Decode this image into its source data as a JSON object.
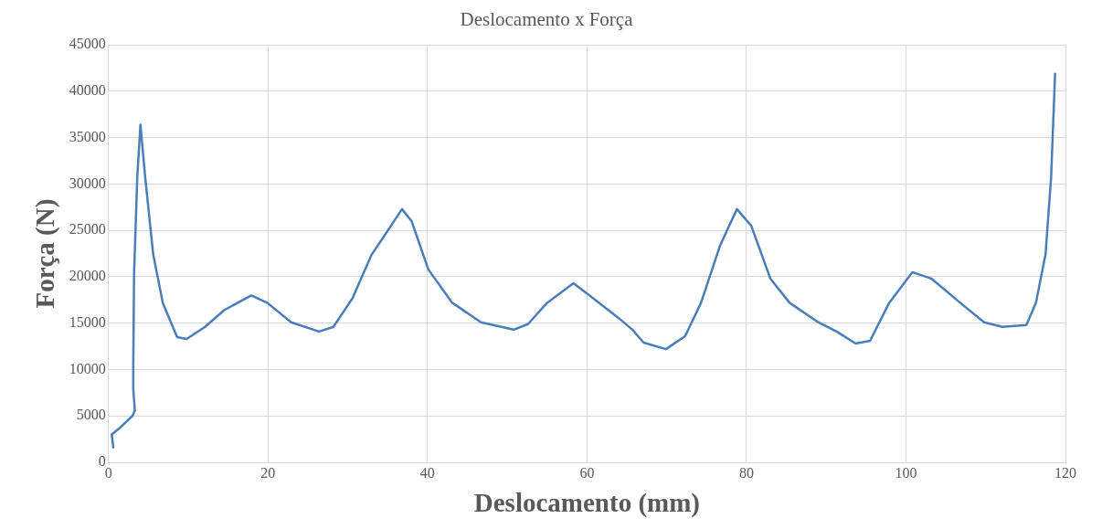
{
  "chart_data": {
    "type": "line",
    "title": "Deslocamento x Força",
    "xlabel": "Deslocamento (mm)",
    "ylabel": "Força (N)",
    "xlim": [
      0,
      120
    ],
    "xticks": [
      0,
      20,
      40,
      60,
      80,
      100,
      120
    ],
    "ylim": [
      0,
      45000
    ],
    "yticks": [
      0,
      5000,
      10000,
      15000,
      20000,
      25000,
      30000,
      35000,
      40000,
      45000
    ],
    "grid": true,
    "legend": false,
    "marker": "none",
    "line_style": "solid",
    "series": [
      {
        "color": "#4a7ebb",
        "x": [
          0.6,
          0.4,
          1.4,
          3,
          3.3,
          3.1,
          3.1,
          3.2,
          3.6,
          4.0,
          4.6,
          5.6,
          6.8,
          8.6,
          9.8,
          12.1,
          14.5,
          17.9,
          19.9,
          22.9,
          26.4,
          28.2,
          30.6,
          33,
          34.8,
          36.8,
          38,
          40.1,
          43.1,
          46.7,
          50.8,
          52.6,
          55,
          58.3,
          60.3,
          63.9,
          65.7,
          67.1,
          69.9,
          72.3,
          74.3,
          76.7,
          78.8,
          80.6,
          83,
          85.4,
          89,
          91.3,
          93.7,
          95.5,
          97.9,
          100.8,
          103.2,
          106.8,
          109.8,
          112.1,
          115.1,
          116.3,
          117.5,
          118.2,
          118.7
        ],
        "values": [
          1600,
          3000,
          3700,
          5000,
          5600,
          7900,
          10500,
          20300,
          30700,
          36400,
          30700,
          22400,
          17200,
          13500,
          13300,
          14600,
          16400,
          18000,
          17200,
          15100,
          14100,
          14600,
          17700,
          22400,
          24700,
          27300,
          26000,
          20800,
          17200,
          15100,
          14300,
          14900,
          17200,
          19300,
          18000,
          15600,
          14300,
          12900,
          12200,
          13600,
          17200,
          23400,
          27300,
          25500,
          19800,
          17200,
          15100,
          14100,
          12800,
          13100,
          17200,
          20500,
          19800,
          17200,
          15100,
          14600,
          14800,
          17200,
          22400,
          30700,
          41900
        ]
      }
    ]
  }
}
